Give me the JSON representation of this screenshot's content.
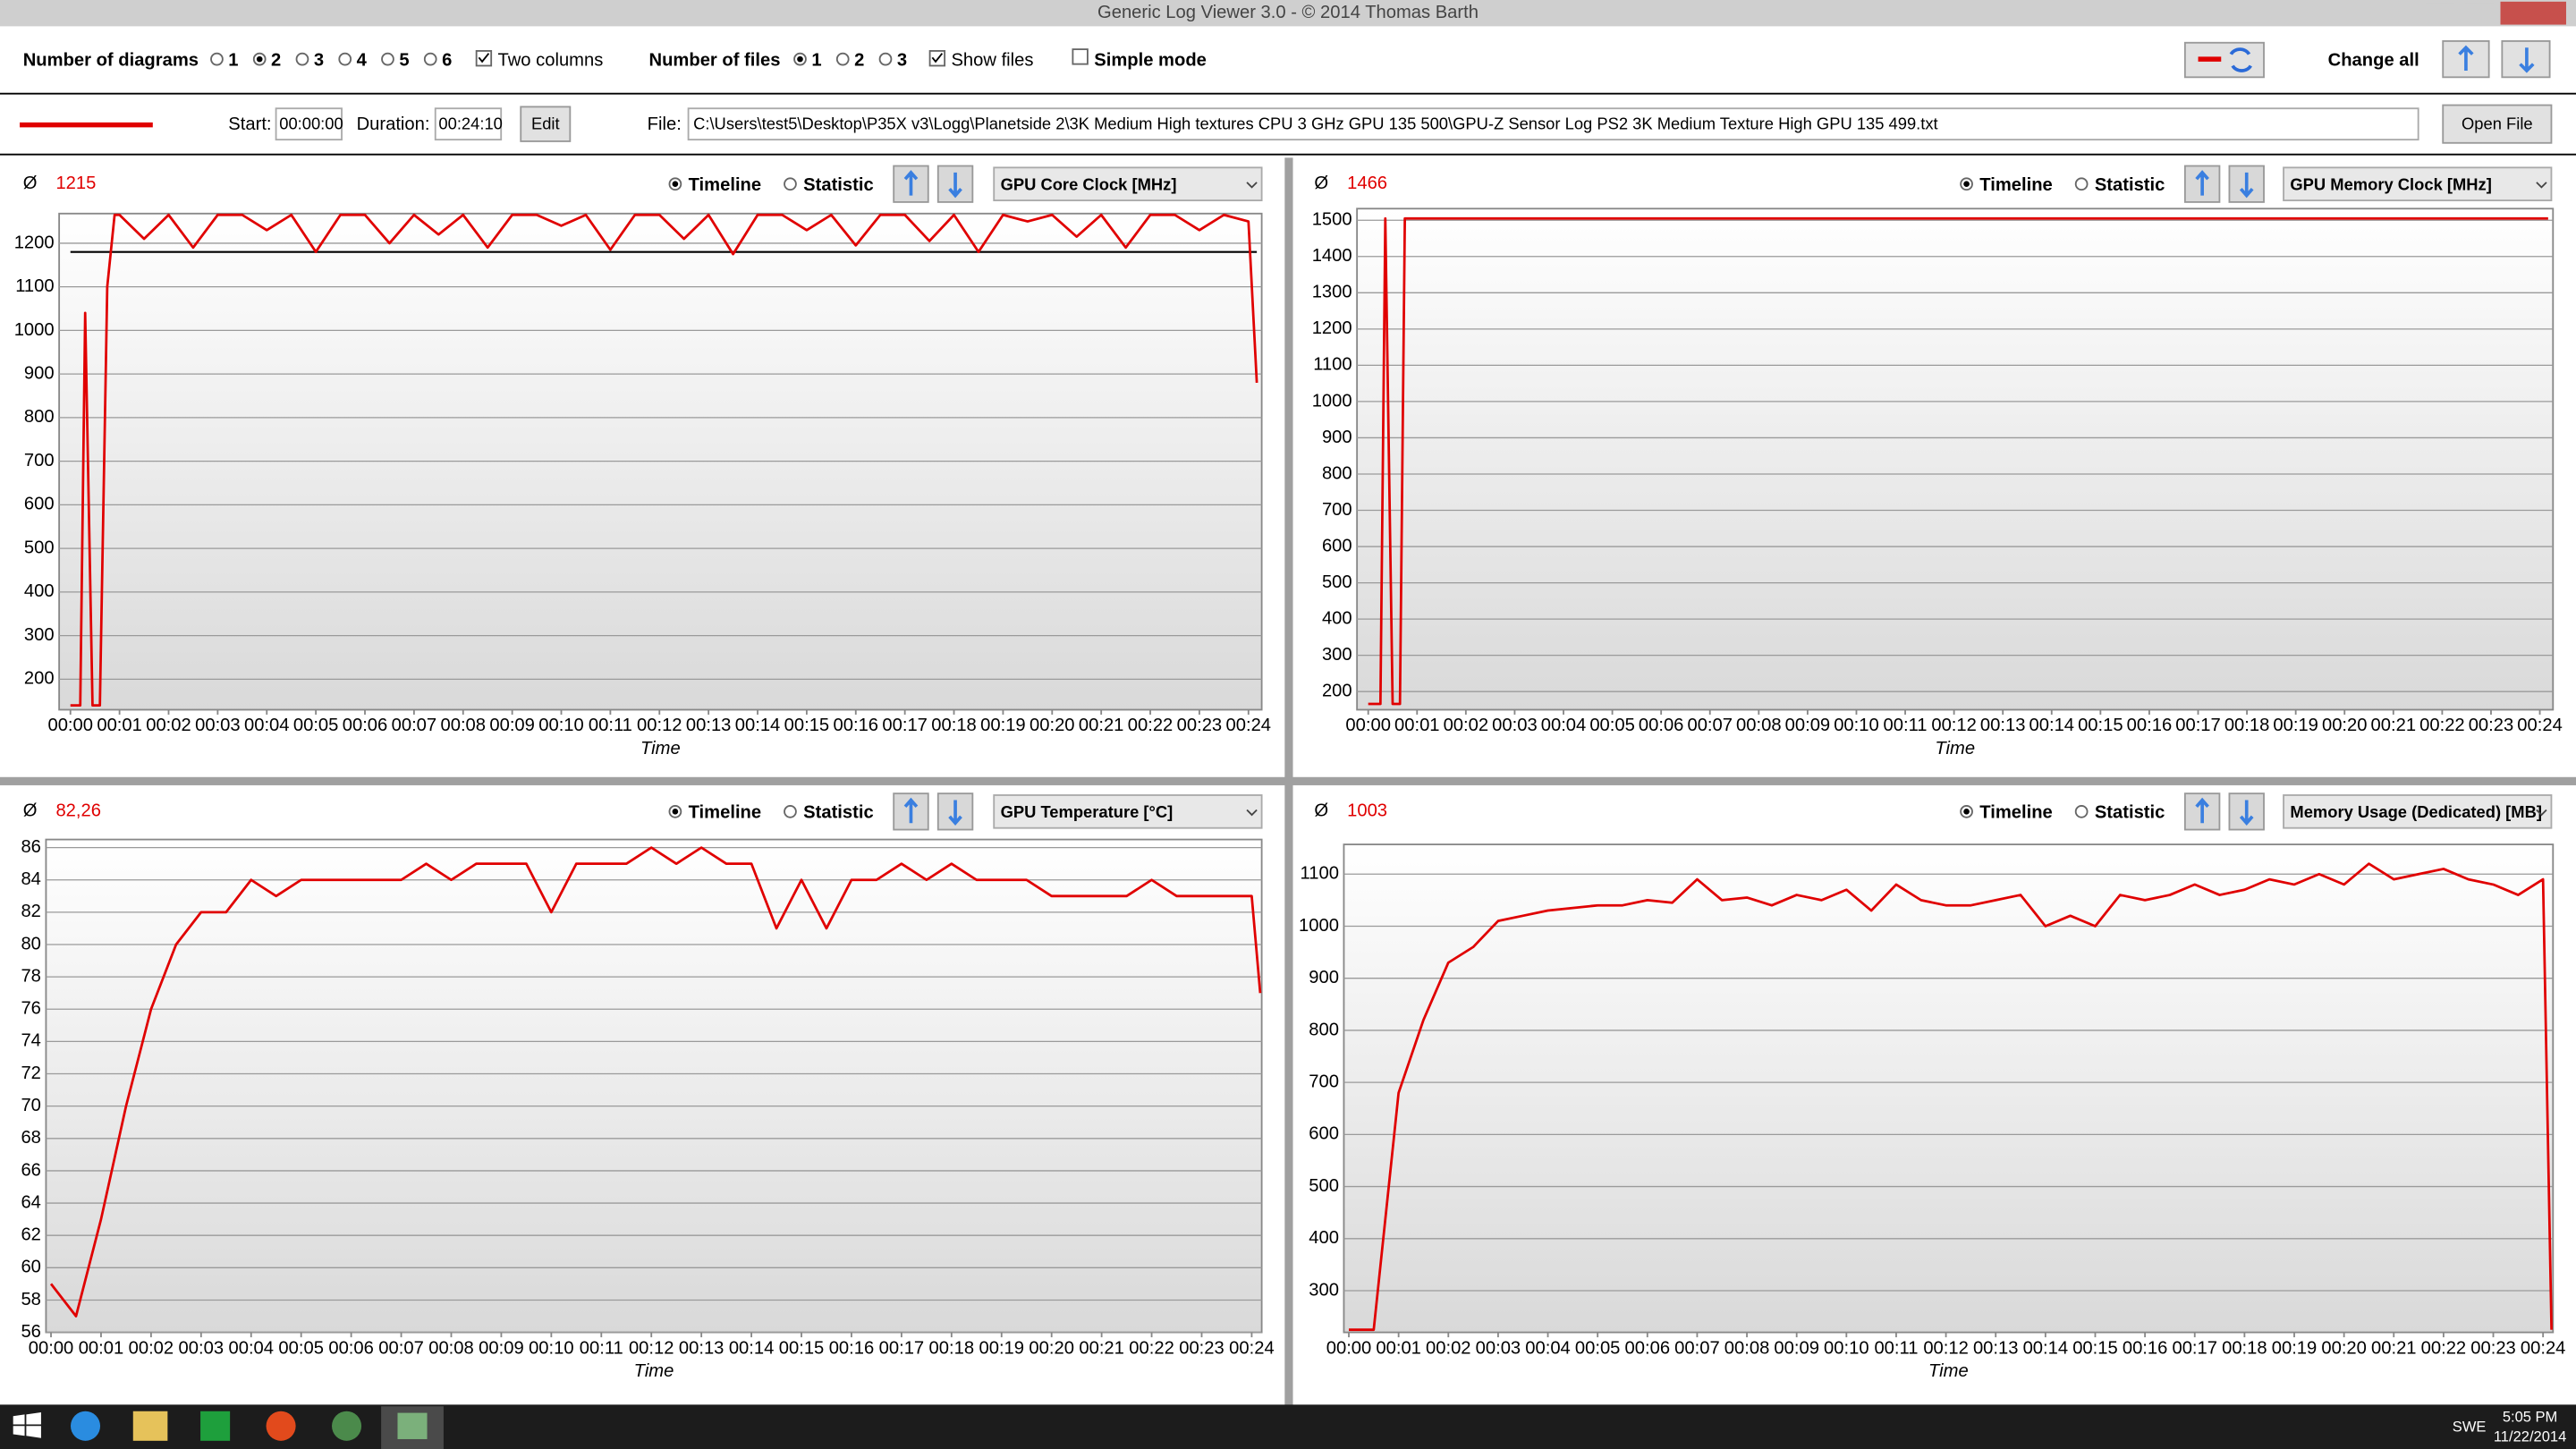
{
  "window_title": "Generic Log Viewer 3.0 - © 2014 Thomas Barth",
  "toolbar": {
    "diagrams_label": "Number of diagrams",
    "diagram_options": [
      "1",
      "2",
      "3",
      "4",
      "5",
      "6"
    ],
    "two_columns": "Two columns",
    "files_label": "Number of files",
    "file_options": [
      "1",
      "2",
      "3"
    ],
    "show_files": "Show files",
    "simple_mode": "Simple mode",
    "change_all": "Change all"
  },
  "file_bar": {
    "color": "#e00000",
    "start_label": "Start:",
    "start": "00:00:00",
    "duration_label": "Duration:",
    "duration": "00:24:10",
    "edit": "Edit",
    "file_label": "File:",
    "file_path": "C:\\Users\\test5\\Desktop\\P35X v3\\Logg\\Planetside 2\\3K Medium High textures CPU 3 GHz GPU 135 500\\GPU-Z Sensor Log PS2 3K Medium Texture High GPU 135 499.txt",
    "open_file": "Open File"
  },
  "taskbar": {
    "language": "SWE",
    "time": "5:05 PM",
    "date": "11/22/2014"
  },
  "chart_data": [
    {
      "type": "line",
      "avg_symbol": "Ø",
      "average": "1215",
      "timeline": "Timeline",
      "statistic": "Statistic",
      "y_label": "GPU Core Clock [MHz]",
      "x_label": "Time",
      "xlim": [
        -0.23,
        24.27
      ],
      "ylim": [
        130,
        1268
      ],
      "yticks": [
        200,
        300,
        400,
        500,
        600,
        700,
        800,
        900,
        1000,
        1100,
        1200
      ],
      "grid": true,
      "reference_line": 1180,
      "xticks": [
        {
          "value": 0,
          "label": "00:00"
        },
        {
          "value": 1,
          "label": "00:01"
        },
        {
          "value": 2,
          "label": "00:02"
        },
        {
          "value": 3,
          "label": "00:03"
        },
        {
          "value": 4,
          "label": "00:04"
        },
        {
          "value": 5,
          "label": "00:05"
        },
        {
          "value": 6,
          "label": "00:06"
        },
        {
          "value": 7,
          "label": "00:07"
        },
        {
          "value": 8,
          "label": "00:08"
        },
        {
          "value": 9,
          "label": "00:09"
        },
        {
          "value": 10,
          "label": "00:10"
        },
        {
          "value": 11,
          "label": "00:11"
        },
        {
          "value": 12,
          "label": "00:12"
        },
        {
          "value": 13,
          "label": "00:13"
        },
        {
          "value": 14,
          "label": "00:14"
        },
        {
          "value": 15,
          "label": "00:15"
        },
        {
          "value": 16,
          "label": "00:16"
        },
        {
          "value": 17,
          "label": "00:17"
        },
        {
          "value": 18,
          "label": "00:18"
        },
        {
          "value": 19,
          "label": "00:19"
        },
        {
          "value": 20,
          "label": "00:20"
        },
        {
          "value": 21,
          "label": "00:21"
        },
        {
          "value": 22,
          "label": "00:22"
        },
        {
          "value": 23,
          "label": "00:23"
        },
        {
          "value": 24,
          "label": "00:24"
        }
      ],
      "x": [
        0,
        0.2,
        0.3,
        0.45,
        0.6,
        0.75,
        0.9,
        1,
        1.5,
        2,
        2.5,
        3,
        3.5,
        4,
        4.5,
        5,
        5.5,
        6,
        6.5,
        7,
        7.5,
        8,
        8.5,
        9,
        9.5,
        10,
        10.5,
        11,
        11.5,
        12,
        12.5,
        13,
        13.5,
        14,
        14.5,
        15,
        15.5,
        16,
        16.5,
        17,
        17.5,
        18,
        18.5,
        19,
        19.5,
        20,
        20.5,
        21,
        21.5,
        22,
        22.5,
        23,
        23.5,
        24,
        24.17
      ],
      "series": [
        {
          "color": "#e00000",
          "values": [
            140,
            140,
            1040,
            140,
            140,
            1100,
            1265,
            1265,
            1210,
            1265,
            1190,
            1265,
            1265,
            1230,
            1265,
            1180,
            1265,
            1265,
            1200,
            1265,
            1220,
            1265,
            1190,
            1265,
            1265,
            1240,
            1265,
            1185,
            1265,
            1265,
            1210,
            1265,
            1175,
            1265,
            1265,
            1230,
            1265,
            1195,
            1265,
            1265,
            1205,
            1265,
            1180,
            1265,
            1250,
            1265,
            1215,
            1265,
            1190,
            1265,
            1265,
            1230,
            1265,
            1250,
            880
          ]
        }
      ]
    },
    {
      "type": "line",
      "avg_symbol": "Ø",
      "average": "1466",
      "timeline": "Timeline",
      "statistic": "Statistic",
      "y_label": "GPU Memory Clock [MHz]",
      "x_label": "Time",
      "xlim": [
        -0.23,
        24.27
      ],
      "ylim": [
        150,
        1532
      ],
      "yticks": [
        200,
        300,
        400,
        500,
        600,
        700,
        800,
        900,
        1000,
        1100,
        1200,
        1300,
        1400,
        1500
      ],
      "grid": true,
      "xticks": [
        {
          "value": 0,
          "label": "00:00"
        },
        {
          "value": 1,
          "label": "00:01"
        },
        {
          "value": 2,
          "label": "00:02"
        },
        {
          "value": 3,
          "label": "00:03"
        },
        {
          "value": 4,
          "label": "00:04"
        },
        {
          "value": 5,
          "label": "00:05"
        },
        {
          "value": 6,
          "label": "00:06"
        },
        {
          "value": 7,
          "label": "00:07"
        },
        {
          "value": 8,
          "label": "00:08"
        },
        {
          "value": 9,
          "label": "00:09"
        },
        {
          "value": 10,
          "label": "00:10"
        },
        {
          "value": 11,
          "label": "00:11"
        },
        {
          "value": 12,
          "label": "00:12"
        },
        {
          "value": 13,
          "label": "00:13"
        },
        {
          "value": 14,
          "label": "00:14"
        },
        {
          "value": 15,
          "label": "00:15"
        },
        {
          "value": 16,
          "label": "00:16"
        },
        {
          "value": 17,
          "label": "00:17"
        },
        {
          "value": 18,
          "label": "00:18"
        },
        {
          "value": 19,
          "label": "00:19"
        },
        {
          "value": 20,
          "label": "00:20"
        },
        {
          "value": 21,
          "label": "00:21"
        },
        {
          "value": 22,
          "label": "00:22"
        },
        {
          "value": 23,
          "label": "00:23"
        },
        {
          "value": 24,
          "label": "00:24"
        }
      ],
      "x": [
        0,
        0.25,
        0.35,
        0.5,
        0.65,
        0.75,
        24.17
      ],
      "series": [
        {
          "color": "#e00000",
          "values": [
            166,
            166,
            1505,
            166,
            166,
            1505,
            1505
          ]
        }
      ]
    },
    {
      "type": "line",
      "avg_symbol": "Ø",
      "average": "82,26",
      "timeline": "Timeline",
      "statistic": "Statistic",
      "y_label": "GPU Temperature [°C]",
      "x_label": "Time",
      "xlim": [
        -0.1,
        24.2
      ],
      "ylim": [
        56,
        86.5
      ],
      "yticks": [
        56,
        58,
        60,
        62,
        64,
        66,
        68,
        70,
        72,
        74,
        76,
        78,
        80,
        82,
        84,
        86
      ],
      "grid": true,
      "xticks": [
        {
          "value": 0,
          "label": "00:00"
        },
        {
          "value": 1,
          "label": "00:01"
        },
        {
          "value": 2,
          "label": "00:02"
        },
        {
          "value": 3,
          "label": "00:03"
        },
        {
          "value": 4,
          "label": "00:04"
        },
        {
          "value": 5,
          "label": "00:05"
        },
        {
          "value": 6,
          "label": "00:06"
        },
        {
          "value": 7,
          "label": "00:07"
        },
        {
          "value": 8,
          "label": "00:08"
        },
        {
          "value": 9,
          "label": "00:09"
        },
        {
          "value": 10,
          "label": "00:10"
        },
        {
          "value": 11,
          "label": "00:11"
        },
        {
          "value": 12,
          "label": "00:12"
        },
        {
          "value": 13,
          "label": "00:13"
        },
        {
          "value": 14,
          "label": "00:14"
        },
        {
          "value": 15,
          "label": "00:15"
        },
        {
          "value": 16,
          "label": "00:16"
        },
        {
          "value": 17,
          "label": "00:17"
        },
        {
          "value": 18,
          "label": "00:18"
        },
        {
          "value": 19,
          "label": "00:19"
        },
        {
          "value": 20,
          "label": "00:20"
        },
        {
          "value": 21,
          "label": "00:21"
        },
        {
          "value": 22,
          "label": "00:22"
        },
        {
          "value": 23,
          "label": "00:23"
        },
        {
          "value": 24,
          "label": "00:24"
        }
      ],
      "x": [
        0,
        0.5,
        1,
        1.5,
        2,
        2.5,
        3,
        3.5,
        4,
        4.5,
        5,
        5.5,
        6,
        6.5,
        7,
        7.5,
        8,
        8.5,
        9,
        9.5,
        10,
        10.5,
        11,
        11.5,
        12,
        12.5,
        13,
        13.5,
        14,
        14.5,
        15,
        15.5,
        16,
        16.5,
        17,
        17.5,
        18,
        18.5,
        19,
        19.5,
        20,
        20.5,
        21,
        21.5,
        22,
        22.5,
        23,
        23.5,
        24,
        24.17
      ],
      "series": [
        {
          "color": "#e00000",
          "values": [
            59,
            57,
            63,
            70,
            76,
            80,
            82,
            82,
            84,
            83,
            84,
            84,
            84,
            84,
            84,
            85,
            84,
            85,
            85,
            85,
            82,
            85,
            85,
            85,
            86,
            85,
            86,
            85,
            85,
            81,
            84,
            81,
            84,
            84,
            85,
            84,
            85,
            84,
            84,
            84,
            83,
            83,
            83,
            83,
            84,
            83,
            83,
            83,
            83,
            77
          ]
        }
      ]
    },
    {
      "type": "line",
      "avg_symbol": "Ø",
      "average": "1003",
      "timeline": "Timeline",
      "statistic": "Statistic",
      "y_label": "Memory Usage (Dedicated) [MB]",
      "x_label": "Time",
      "xlim": [
        -0.1,
        24.2
      ],
      "ylim": [
        220,
        1157
      ],
      "yticks": [
        300,
        400,
        500,
        600,
        700,
        800,
        900,
        1000,
        1100
      ],
      "grid": true,
      "xticks": [
        {
          "value": 0,
          "label": "00:00"
        },
        {
          "value": 1,
          "label": "00:01"
        },
        {
          "value": 2,
          "label": "00:02"
        },
        {
          "value": 3,
          "label": "00:03"
        },
        {
          "value": 4,
          "label": "00:04"
        },
        {
          "value": 5,
          "label": "00:05"
        },
        {
          "value": 6,
          "label": "00:06"
        },
        {
          "value": 7,
          "label": "00:07"
        },
        {
          "value": 8,
          "label": "00:08"
        },
        {
          "value": 9,
          "label": "00:09"
        },
        {
          "value": 10,
          "label": "00:10"
        },
        {
          "value": 11,
          "label": "00:11"
        },
        {
          "value": 12,
          "label": "00:12"
        },
        {
          "value": 13,
          "label": "00:13"
        },
        {
          "value": 14,
          "label": "00:14"
        },
        {
          "value": 15,
          "label": "00:15"
        },
        {
          "value": 16,
          "label": "00:16"
        },
        {
          "value": 17,
          "label": "00:17"
        },
        {
          "value": 18,
          "label": "00:18"
        },
        {
          "value": 19,
          "label": "00:19"
        },
        {
          "value": 20,
          "label": "00:20"
        },
        {
          "value": 21,
          "label": "00:21"
        },
        {
          "value": 22,
          "label": "00:22"
        },
        {
          "value": 23,
          "label": "00:23"
        },
        {
          "value": 24,
          "label": "00:24"
        }
      ],
      "x": [
        0,
        0.5,
        1,
        1.5,
        2,
        2.5,
        3,
        3.5,
        4,
        4.5,
        5,
        5.5,
        6,
        6.5,
        7,
        7.5,
        8,
        8.5,
        9,
        9.5,
        10,
        10.5,
        11,
        11.5,
        12,
        12.5,
        13,
        13.5,
        14,
        14.5,
        15,
        15.5,
        16,
        16.5,
        17,
        17.5,
        18,
        18.5,
        19,
        19.5,
        20,
        20.5,
        21,
        21.5,
        22,
        22.5,
        23,
        23.5,
        24,
        24.17
      ],
      "series": [
        {
          "color": "#e00000",
          "values": [
            225,
            225,
            680,
            820,
            930,
            960,
            1010,
            1020,
            1030,
            1035,
            1040,
            1040,
            1050,
            1045,
            1090,
            1050,
            1055,
            1040,
            1060,
            1050,
            1070,
            1030,
            1080,
            1050,
            1040,
            1040,
            1050,
            1060,
            1000,
            1020,
            1000,
            1060,
            1050,
            1060,
            1080,
            1060,
            1070,
            1090,
            1080,
            1100,
            1080,
            1120,
            1090,
            1100,
            1110,
            1090,
            1080,
            1060,
            1090,
            225
          ]
        }
      ]
    }
  ]
}
